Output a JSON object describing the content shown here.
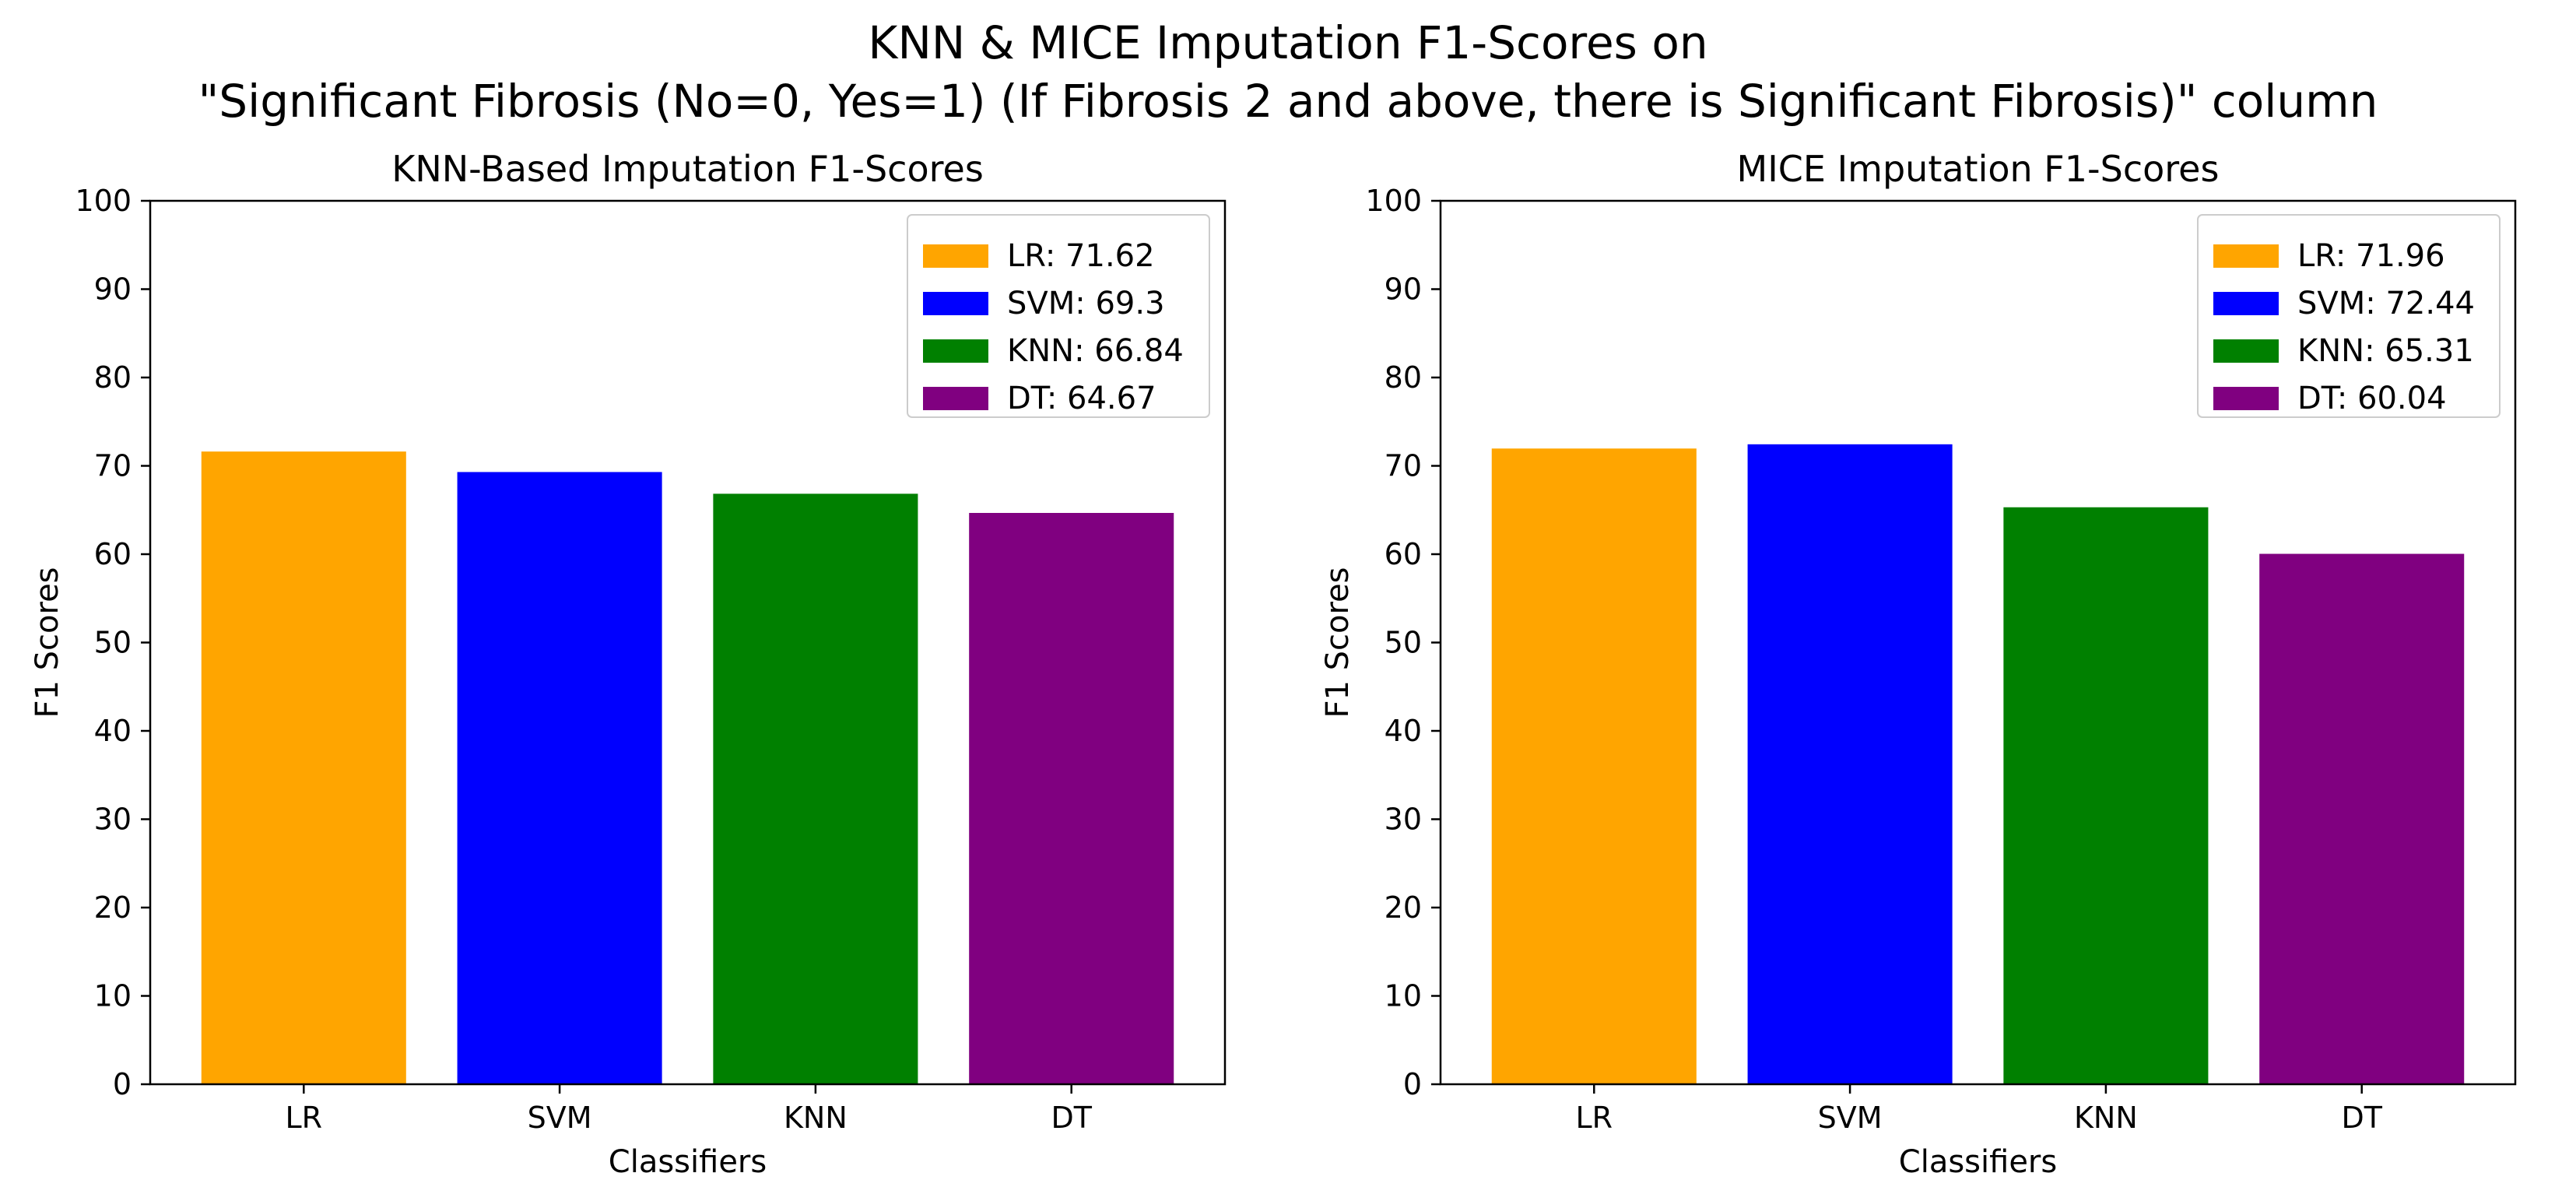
{
  "figure": {
    "suptitle_line1": "KNN & MICE Imputation F1-Scores on",
    "suptitle_line2": "\"Significant Fibrosis (No=0, Yes=1) (If Fibrosis 2 and above, there is Significant Fibrosis)\" column"
  },
  "chart_data": [
    {
      "type": "bar",
      "title": "KNN-Based Imputation F1-Scores",
      "xlabel": "Classifiers",
      "ylabel": "F1 Scores",
      "ylim": [
        0,
        100
      ],
      "yticks": [
        0,
        10,
        20,
        30,
        40,
        50,
        60,
        70,
        80,
        90,
        100
      ],
      "categories": [
        "LR",
        "SVM",
        "KNN",
        "DT"
      ],
      "values": [
        71.62,
        69.3,
        66.84,
        64.67
      ],
      "colors": [
        "#FFA500",
        "#0000FF",
        "#008000",
        "#800080"
      ],
      "legend": {
        "placement": "top-right",
        "entries": [
          "LR: 71.62",
          "SVM: 69.3",
          "KNN: 66.84",
          "DT: 64.67"
        ]
      },
      "grid": false
    },
    {
      "type": "bar",
      "title": "MICE Imputation F1-Scores",
      "xlabel": "Classifiers",
      "ylabel": "F1 Scores",
      "ylim": [
        0,
        100
      ],
      "yticks": [
        0,
        10,
        20,
        30,
        40,
        50,
        60,
        70,
        80,
        90,
        100
      ],
      "categories": [
        "LR",
        "SVM",
        "KNN",
        "DT"
      ],
      "values": [
        71.96,
        72.44,
        65.31,
        60.04
      ],
      "colors": [
        "#FFA500",
        "#0000FF",
        "#008000",
        "#800080"
      ],
      "legend": {
        "placement": "top-right",
        "entries": [
          "LR: 71.96",
          "SVM: 72.44",
          "KNN: 65.31",
          "DT: 60.04"
        ]
      },
      "grid": false
    }
  ]
}
